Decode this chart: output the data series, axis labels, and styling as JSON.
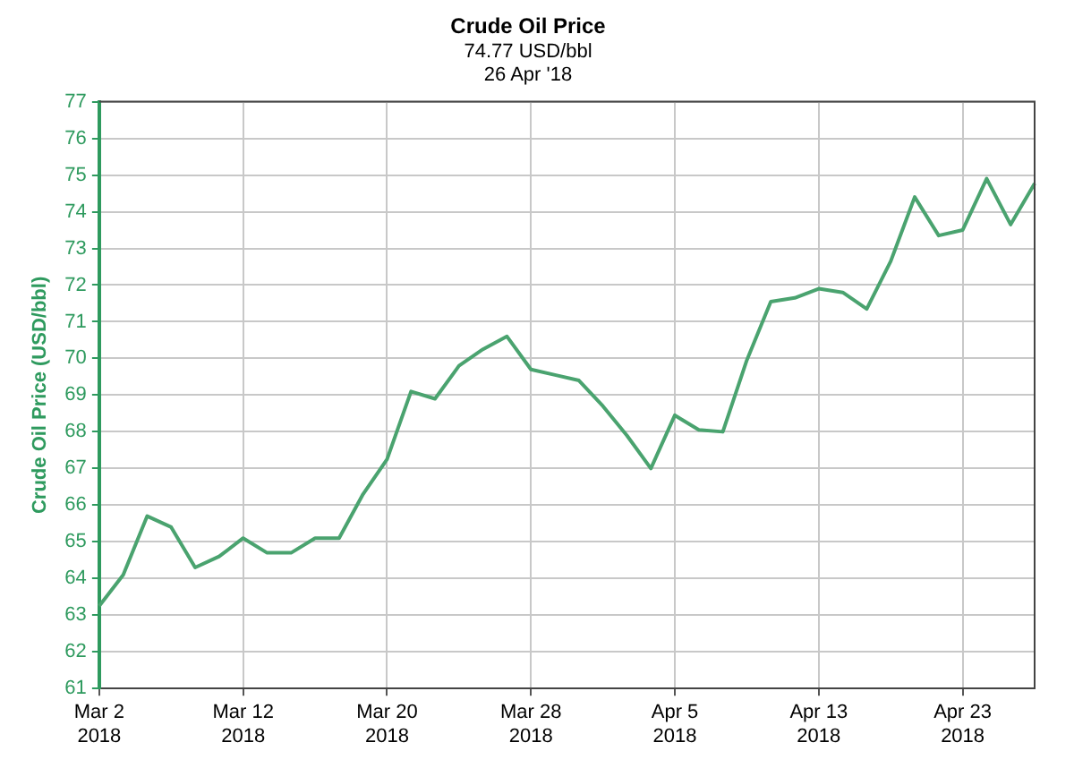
{
  "chart_data": {
    "type": "line",
    "title": "Crude Oil Price",
    "subtitle": "74.77 USD/bbl\n26 Apr '18",
    "ylabel": "Crude Oil Price (USD/bbl)",
    "categories": [
      "Mar 2 2018",
      null,
      null,
      null,
      null,
      null,
      "Mar 12 2018",
      null,
      null,
      null,
      null,
      null,
      "Mar 20 2018",
      null,
      null,
      null,
      null,
      null,
      "Mar 28 2018",
      null,
      null,
      null,
      null,
      null,
      "Apr 5 2018",
      null,
      null,
      null,
      null,
      null,
      "Apr 13 2018",
      null,
      null,
      null,
      null,
      null,
      "Apr 23 2018",
      null,
      null,
      null
    ],
    "series": [
      {
        "color": "#4aa36f",
        "values": [
          63.25,
          64.1,
          65.7,
          65.4,
          64.3,
          64.6,
          65.1,
          64.7,
          64.7,
          65.1,
          65.1,
          66.3,
          67.25,
          69.1,
          68.9,
          69.8,
          70.25,
          70.6,
          69.7,
          69.55,
          69.4,
          68.7,
          67.9,
          67.0,
          68.45,
          68.05,
          68.0,
          69.95,
          71.55,
          71.65,
          71.9,
          71.8,
          71.35,
          72.65,
          74.4,
          73.35,
          73.5,
          74.9,
          73.65,
          74.77
        ]
      }
    ],
    "ylim": [
      61,
      77
    ],
    "yticks": [
      61,
      62,
      63,
      64,
      65,
      66,
      67,
      68,
      69,
      70,
      71,
      72,
      73,
      74,
      75,
      76,
      77
    ],
    "grid": true,
    "legend": false,
    "marker": "none",
    "line_style": "solid"
  }
}
